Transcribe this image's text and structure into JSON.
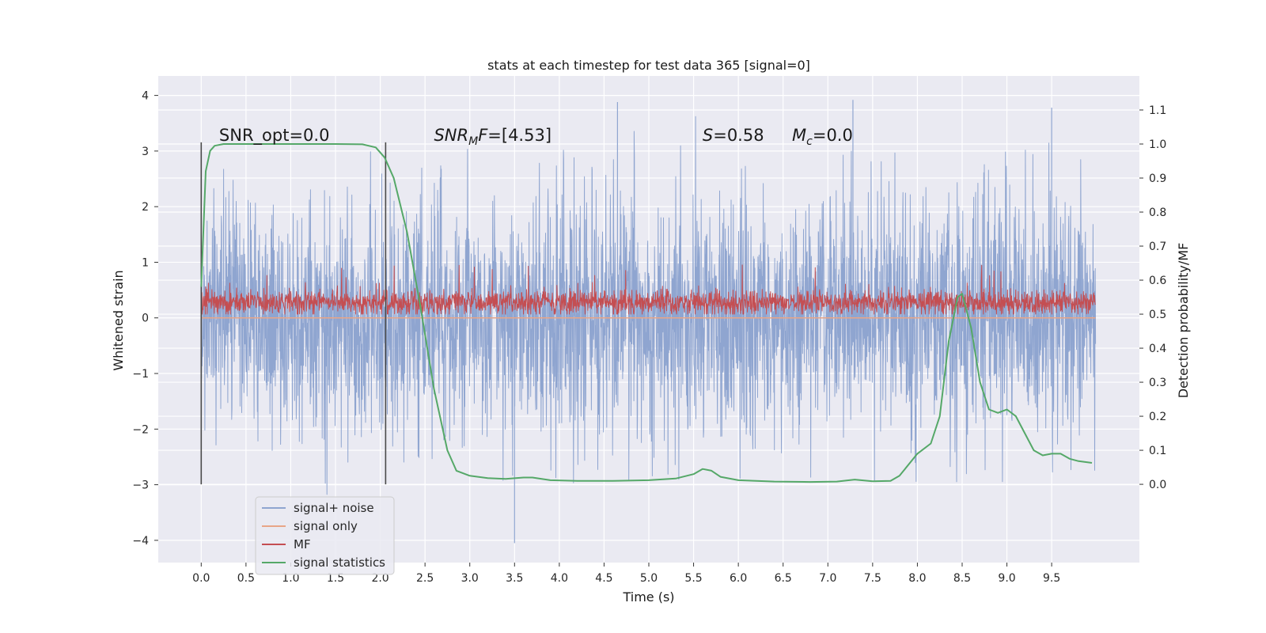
{
  "chart_data": {
    "type": "line",
    "title": "stats at each timestep for test data 365 [signal=0]",
    "xlabel": "Time (s)",
    "ylabel": "Whitened strain",
    "ylabel_right": "Detection probability/MF",
    "xlim": [
      -0.48,
      10.48
    ],
    "ylim": [
      -4.4,
      4.35
    ],
    "ylim_right": [
      -0.23,
      1.2
    ],
    "x_ticks": [
      "0.0",
      "0.5",
      "1.0",
      "1.5",
      "2.0",
      "2.5",
      "3.0",
      "3.5",
      "4.0",
      "4.5",
      "5.0",
      "5.5",
      "6.0",
      "6.5",
      "7.0",
      "7.5",
      "8.0",
      "8.5",
      "9.0",
      "9.5"
    ],
    "y_ticks": [
      "4",
      "3",
      "2",
      "1",
      "0",
      "−1",
      "−2",
      "−3",
      "−4"
    ],
    "y_ticks_right": [
      "1.1",
      "1.0",
      "0.9",
      "0.8",
      "0.7",
      "0.6",
      "0.5",
      "0.4",
      "0.3",
      "0.2",
      "0.1",
      "0.0"
    ],
    "grid": true,
    "legend_position": "lower-left",
    "background": "#eaeaf2",
    "vlines": [
      0.0,
      2.06
    ],
    "annotations": [
      {
        "kind": "plain",
        "text": "SNR_opt=0.0"
      },
      {
        "kind": "snrmf",
        "main": "SNR",
        "sub": "M",
        "rest": "F=[4.53]"
      },
      {
        "kind": "s",
        "main": "S",
        "rest": "=0.58"
      },
      {
        "kind": "mc",
        "main": "M",
        "sub": "c",
        "rest": "=0.0"
      }
    ],
    "series": [
      {
        "name": "signal+ noise",
        "color": "#8fa5d0",
        "style": "dense-noise",
        "x_range": [
          0.0,
          9.99
        ],
        "center": 0.0,
        "typical_range": [
          -1.4,
          2.3
        ],
        "extremes": {
          "max": 3.92,
          "min": -4.05
        }
      },
      {
        "name": "signal only",
        "color": "#e8a587",
        "style": "flat",
        "values": [
          [
            0.0,
            0.0
          ],
          [
            9.99,
            0.0
          ]
        ]
      },
      {
        "name": "MF",
        "color": "#c44e52",
        "style": "dense-noise",
        "axis": "right",
        "x_range": [
          0.0,
          9.99
        ],
        "center": 0.535,
        "typical_range": [
          0.505,
          0.575
        ],
        "extremes": {
          "max": 0.665,
          "min": 0.5
        }
      },
      {
        "name": "signal statistics",
        "color": "#55a868",
        "axis": "right",
        "points": [
          [
            0.0,
            0.58
          ],
          [
            0.05,
            0.92
          ],
          [
            0.1,
            0.98
          ],
          [
            0.15,
            0.995
          ],
          [
            0.25,
            1.0
          ],
          [
            0.5,
            1.0
          ],
          [
            1.0,
            1.0
          ],
          [
            1.5,
            1.0
          ],
          [
            1.8,
            0.999
          ],
          [
            1.95,
            0.99
          ],
          [
            2.05,
            0.96
          ],
          [
            2.15,
            0.9
          ],
          [
            2.3,
            0.74
          ],
          [
            2.45,
            0.52
          ],
          [
            2.6,
            0.28
          ],
          [
            2.75,
            0.1
          ],
          [
            2.85,
            0.04
          ],
          [
            3.0,
            0.025
          ],
          [
            3.2,
            0.018
          ],
          [
            3.4,
            0.016
          ],
          [
            3.6,
            0.02
          ],
          [
            3.7,
            0.02
          ],
          [
            3.9,
            0.012
          ],
          [
            4.2,
            0.01
          ],
          [
            4.6,
            0.01
          ],
          [
            5.0,
            0.012
          ],
          [
            5.3,
            0.017
          ],
          [
            5.5,
            0.03
          ],
          [
            5.6,
            0.045
          ],
          [
            5.7,
            0.04
          ],
          [
            5.8,
            0.022
          ],
          [
            6.0,
            0.012
          ],
          [
            6.4,
            0.008
          ],
          [
            6.8,
            0.007
          ],
          [
            7.1,
            0.008
          ],
          [
            7.3,
            0.014
          ],
          [
            7.5,
            0.009
          ],
          [
            7.7,
            0.01
          ],
          [
            7.8,
            0.025
          ],
          [
            8.0,
            0.09
          ],
          [
            8.15,
            0.12
          ],
          [
            8.25,
            0.2
          ],
          [
            8.35,
            0.42
          ],
          [
            8.45,
            0.55
          ],
          [
            8.5,
            0.56
          ],
          [
            8.6,
            0.46
          ],
          [
            8.7,
            0.3
          ],
          [
            8.8,
            0.22
          ],
          [
            8.9,
            0.21
          ],
          [
            9.0,
            0.22
          ],
          [
            9.1,
            0.2
          ],
          [
            9.2,
            0.15
          ],
          [
            9.3,
            0.1
          ],
          [
            9.4,
            0.085
          ],
          [
            9.5,
            0.09
          ],
          [
            9.6,
            0.09
          ],
          [
            9.7,
            0.075
          ],
          [
            9.8,
            0.068
          ],
          [
            9.95,
            0.063
          ]
        ]
      }
    ]
  }
}
